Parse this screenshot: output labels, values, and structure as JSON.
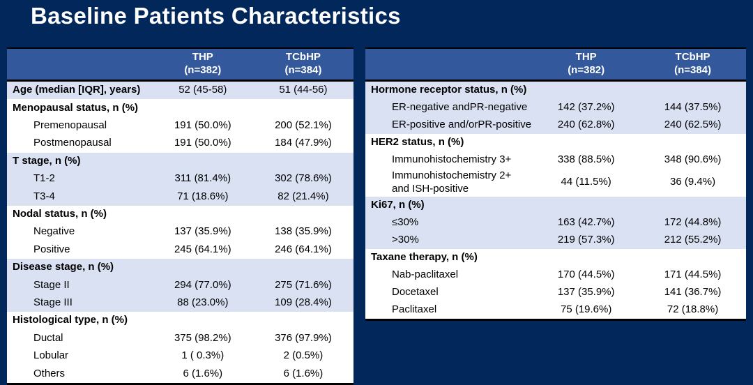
{
  "title": "Baseline Patients Characteristics",
  "colors": {
    "background": "#02275A",
    "table_header_bg": "#33589B",
    "table_header_text": "#FFFFFF",
    "row_shaded_bg": "#D9E1F2",
    "row_plain_bg": "#FFFFFF",
    "table_border": "#000000",
    "title_text": "#FFFFFF",
    "cell_text": "#000000"
  },
  "columns": {
    "thp": {
      "name": "THP",
      "n": "(n=382)"
    },
    "tcbhp": {
      "name": "TCbHP",
      "n": "(n=384)"
    }
  },
  "tables": {
    "left": {
      "rows": [
        {
          "label": "Age (median [IQR], years)",
          "thp": "52 (45-58)",
          "tcbhp": "51 (44-56)",
          "bold": true,
          "indent": false,
          "shaded": true
        },
        {
          "label": "Menopausal status, n (%)",
          "thp": "",
          "tcbhp": "",
          "bold": true,
          "indent": false,
          "shaded": false
        },
        {
          "label": "Premenopausal",
          "thp": "191 (50.0%)",
          "tcbhp": "200 (52.1%)",
          "bold": false,
          "indent": true,
          "shaded": false
        },
        {
          "label": "Postmenopausal",
          "thp": "191 (50.0%)",
          "tcbhp": "184 (47.9%)",
          "bold": false,
          "indent": true,
          "shaded": false
        },
        {
          "label": "T stage, n (%)",
          "thp": "",
          "tcbhp": "",
          "bold": true,
          "indent": false,
          "shaded": true
        },
        {
          "label": "T1-2",
          "thp": "311 (81.4%)",
          "tcbhp": "302 (78.6%)",
          "bold": false,
          "indent": true,
          "shaded": true
        },
        {
          "label": "T3-4",
          "thp": "71 (18.6%)",
          "tcbhp": "82 (21.4%)",
          "bold": false,
          "indent": true,
          "shaded": true
        },
        {
          "label": "Nodal status, n (%)",
          "thp": "",
          "tcbhp": "",
          "bold": true,
          "indent": false,
          "shaded": false
        },
        {
          "label": "Negative",
          "thp": "137 (35.9%)",
          "tcbhp": "138 (35.9%)",
          "bold": false,
          "indent": true,
          "shaded": false
        },
        {
          "label": "Positive",
          "thp": "245 (64.1%)",
          "tcbhp": "246 (64.1%)",
          "bold": false,
          "indent": true,
          "shaded": false
        },
        {
          "label": "Disease stage, n (%)",
          "thp": "",
          "tcbhp": "",
          "bold": true,
          "indent": false,
          "shaded": true
        },
        {
          "label": "Stage II",
          "thp": "294 (77.0%)",
          "tcbhp": "275 (71.6%)",
          "bold": false,
          "indent": true,
          "shaded": true
        },
        {
          "label": "Stage III",
          "thp": "88 (23.0%)",
          "tcbhp": "109 (28.4%)",
          "bold": false,
          "indent": true,
          "shaded": true
        },
        {
          "label": "Histological type, n (%)",
          "thp": "",
          "tcbhp": "",
          "bold": true,
          "indent": false,
          "shaded": false
        },
        {
          "label": "Ductal",
          "thp": "375 (98.2%)",
          "tcbhp": "376 (97.9%)",
          "bold": false,
          "indent": true,
          "shaded": false
        },
        {
          "label": "Lobular",
          "thp": "1 ( 0.3%)",
          "tcbhp": "2 (0.5%)",
          "bold": false,
          "indent": true,
          "shaded": false
        },
        {
          "label": "Others",
          "thp": "6 (1.6%)",
          "tcbhp": "6 (1.6%)",
          "bold": false,
          "indent": true,
          "shaded": false
        }
      ]
    },
    "right": {
      "rows": [
        {
          "label": "Hormone receptor status, n (%)",
          "thp": "",
          "tcbhp": "",
          "bold": true,
          "indent": false,
          "shaded": true
        },
        {
          "label": "ER-negative andPR-negative",
          "thp": "142 (37.2%)",
          "tcbhp": "144 (37.5%)",
          "bold": false,
          "indent": true,
          "shaded": true
        },
        {
          "label": "ER-positive and/orPR-positive",
          "thp": "240 (62.8%)",
          "tcbhp": "240 (62.5%)",
          "bold": false,
          "indent": true,
          "shaded": true
        },
        {
          "label": "HER2 status, n (%)",
          "thp": "",
          "tcbhp": "",
          "bold": true,
          "indent": false,
          "shaded": false
        },
        {
          "label": "Immunohistochemistry 3+",
          "thp": "338 (88.5%)",
          "tcbhp": "348 (90.6%)",
          "bold": false,
          "indent": true,
          "shaded": false
        },
        {
          "label": "Immunohistochemistry 2+ and ISH-positive",
          "thp": "44 (11.5%)",
          "tcbhp": "36 (9.4%)",
          "bold": false,
          "indent": true,
          "shaded": false
        },
        {
          "label": "Ki67, n (%)",
          "thp": "",
          "tcbhp": "",
          "bold": true,
          "indent": false,
          "shaded": true
        },
        {
          "label": "≤30%",
          "thp": "163 (42.7%)",
          "tcbhp": "172 (44.8%)",
          "bold": false,
          "indent": true,
          "shaded": true
        },
        {
          "label": ">30%",
          "thp": "219 (57.3%)",
          "tcbhp": "212 (55.2%)",
          "bold": false,
          "indent": true,
          "shaded": true
        },
        {
          "label": "Taxane therapy, n (%)",
          "thp": "",
          "tcbhp": "",
          "bold": true,
          "indent": false,
          "shaded": false
        },
        {
          "label": "Nab-paclitaxel",
          "thp": "170 (44.5%)",
          "tcbhp": "171 (44.5%)",
          "bold": false,
          "indent": true,
          "shaded": false
        },
        {
          "label": "Docetaxel",
          "thp": "137 (35.9%)",
          "tcbhp": "141 (36.7%)",
          "bold": false,
          "indent": true,
          "shaded": false
        },
        {
          "label": "Paclitaxel",
          "thp": "75 (19.6%)",
          "tcbhp": "72 (18.8%)",
          "bold": false,
          "indent": true,
          "shaded": false
        }
      ]
    }
  }
}
